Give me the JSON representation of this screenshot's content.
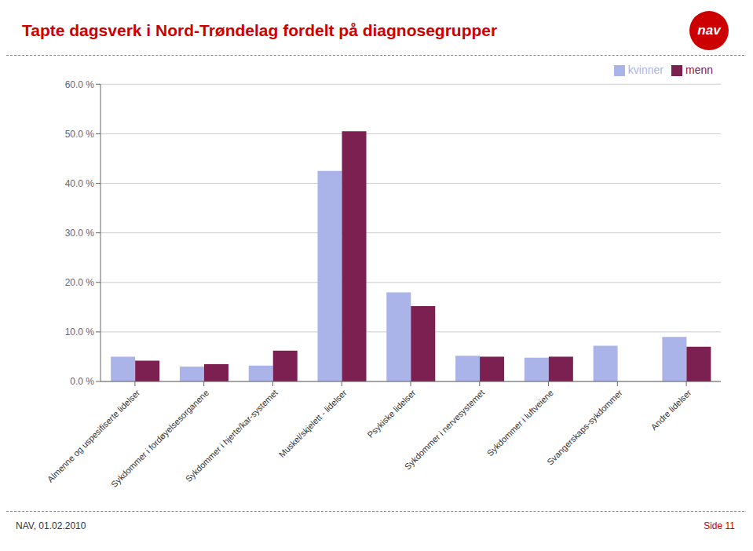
{
  "chart_data": {
    "type": "bar",
    "title": "Tapte dagsverk i Nord-Trøndelag fordelt på diagnosegrupper",
    "categories": [
      "Almenne og uspesifiserte lidelser",
      "Sykdommer i fordøyelsesorganene",
      "Sykdommer i hjerte/kar-systemet",
      "Muskel/skjelett - lidelser",
      "Psykiske lidelser",
      "Sykdommer i nervesystemet",
      "Sykdommer i luftveiene",
      "Svangerskaps-sykdommer",
      "Andre lidelser"
    ],
    "series": [
      {
        "name": "kvinner",
        "color": "#aab4e8",
        "values": [
          5.0,
          3.0,
          3.2,
          42.5,
          18.0,
          5.2,
          4.8,
          7.2,
          9.0
        ]
      },
      {
        "name": "menn",
        "color": "#7b2050",
        "values": [
          4.2,
          3.5,
          6.2,
          50.5,
          15.2,
          5.0,
          5.0,
          0.0,
          7.0
        ]
      }
    ],
    "ylim": [
      0,
      60
    ],
    "yticks": [
      {
        "value": 0,
        "label": "0.0 %"
      },
      {
        "value": 10,
        "label": "10.0 %"
      },
      {
        "value": 20,
        "label": "20.0 %"
      },
      {
        "value": 30,
        "label": "30.0 %"
      },
      {
        "value": 40,
        "label": "40.0 %"
      },
      {
        "value": 50,
        "label": "50.0 %"
      },
      {
        "value": 60,
        "label": "60.0 %"
      }
    ],
    "grid": true,
    "legend": "upper right",
    "annotations": [
      "nav",
      "NAV, 01.02.2010",
      "Side 11"
    ]
  }
}
